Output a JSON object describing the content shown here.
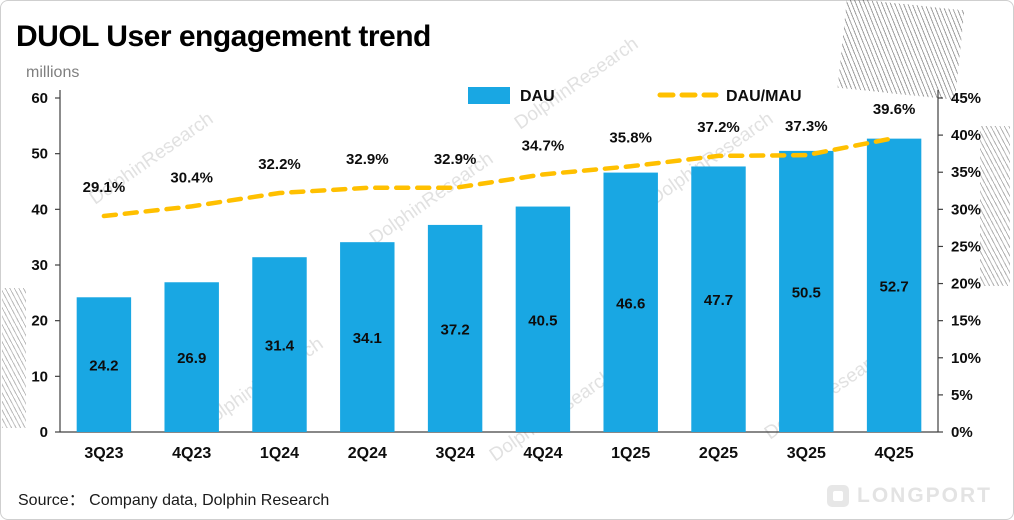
{
  "title": "DUOL User engagement trend",
  "units_label": "millions",
  "legend": {
    "bar_label": "DAU",
    "line_label": "DAU/MAU"
  },
  "source": "Source：  Company data, Dolphin Research",
  "watermark_text": "DolphinResearch",
  "brand_text": "LONGPORT",
  "colors": {
    "bar": "#19a7e3",
    "line": "#ffc000",
    "axis": "#404040",
    "label": "#0d0d0d",
    "watermark": "#c9c9c9"
  },
  "chart_data": {
    "type": "bar",
    "subtype": "bar+line combo, dual axis",
    "categories": [
      "3Q23",
      "4Q23",
      "1Q24",
      "2Q24",
      "3Q24",
      "4Q24",
      "1Q25",
      "2Q25",
      "3Q25",
      "4Q25"
    ],
    "series": [
      {
        "name": "DAU",
        "type": "bar",
        "axis": "left",
        "unit": "millions",
        "values": [
          24.2,
          26.9,
          31.4,
          34.1,
          37.2,
          40.5,
          46.6,
          47.7,
          50.5,
          52.7
        ]
      },
      {
        "name": "DAU/MAU",
        "type": "line",
        "axis": "right",
        "unit": "%",
        "style": "dashed",
        "values": [
          29.1,
          30.4,
          32.2,
          32.9,
          32.9,
          34.7,
          35.8,
          37.2,
          37.3,
          39.6
        ]
      }
    ],
    "title": "DUOL User engagement trend",
    "xlabel": "",
    "ylabel_left": "millions",
    "left_axis": {
      "min": 0,
      "max": 60,
      "step": 10,
      "ticks": [
        0,
        10,
        20,
        30,
        40,
        50,
        60
      ]
    },
    "right_axis": {
      "min": 0,
      "max": 45,
      "step": 5,
      "unit": "%",
      "ticks": [
        "0%",
        "5%",
        "10%",
        "15%",
        "20%",
        "25%",
        "30%",
        "35%",
        "40%",
        "45%"
      ]
    },
    "grid": false,
    "legend_position": "top-center"
  }
}
